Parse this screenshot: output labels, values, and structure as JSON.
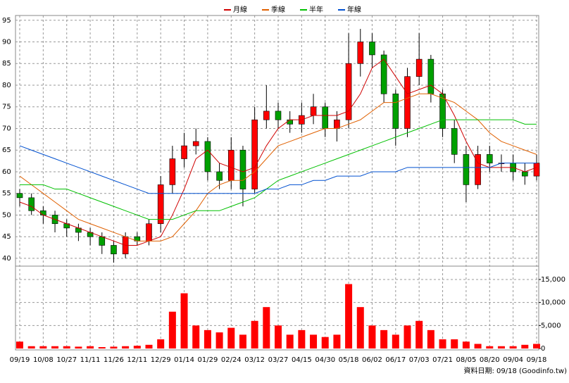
{
  "chart_data": {
    "type": "candlestick",
    "categories": [
      "09/19",
      null,
      "10/08",
      null,
      "10/27",
      null,
      "11/11",
      null,
      "11/26",
      null,
      "12/11",
      null,
      "12/29",
      null,
      "01/14",
      null,
      "01/29",
      null,
      "02/24",
      null,
      "03/12",
      null,
      "03/27",
      null,
      "04/15",
      null,
      "04/30",
      null,
      "05/18",
      null,
      "06/02",
      null,
      "06/17",
      null,
      "07/03",
      null,
      "07/21",
      null,
      "08/05",
      null,
      "08/20",
      null,
      "09/04",
      null,
      "09/18"
    ],
    "open": [
      55,
      54,
      51,
      50,
      48,
      47,
      46,
      45,
      43,
      41,
      45,
      44,
      48,
      57,
      63,
      66,
      67,
      60,
      58,
      65,
      56,
      72,
      74,
      72,
      71,
      73,
      75,
      70,
      72,
      85,
      90,
      87,
      78,
      70,
      82,
      86,
      78,
      70,
      64,
      57,
      64,
      62,
      62,
      60,
      59
    ],
    "high": [
      56,
      55,
      52,
      51,
      49,
      48,
      47,
      46,
      44,
      46,
      46,
      49,
      59,
      66,
      69,
      70,
      68,
      62,
      68,
      66,
      75,
      80,
      76,
      74,
      76,
      78,
      76,
      74,
      92,
      93,
      92,
      88,
      79,
      84,
      92,
      87,
      79,
      72,
      66,
      66,
      66,
      64,
      64,
      62,
      64
    ],
    "low": [
      52,
      50,
      48,
      46,
      45,
      44,
      43,
      41,
      39,
      40,
      43,
      43,
      46,
      55,
      61,
      64,
      58,
      56,
      56,
      52,
      55,
      70,
      70,
      69,
      69,
      71,
      68,
      67,
      70,
      82,
      84,
      76,
      66,
      68,
      80,
      76,
      68,
      62,
      53,
      56,
      60,
      60,
      58,
      57,
      58
    ],
    "close": [
      54,
      51,
      50,
      48,
      47,
      46,
      45,
      43,
      41,
      45,
      44,
      48,
      57,
      63,
      66,
      67,
      60,
      58,
      65,
      56,
      72,
      74,
      72,
      71,
      73,
      75,
      70,
      72,
      85,
      90,
      87,
      78,
      70,
      82,
      86,
      78,
      70,
      64,
      57,
      64,
      62,
      62,
      60,
      59,
      62
    ],
    "up_color": "#ff0000",
    "down_color": "#00a000",
    "series": [
      {
        "name": "月線",
        "color": "#d00000",
        "values": [
          53,
          52,
          50,
          49,
          48,
          47,
          46,
          45,
          44,
          43,
          43,
          44,
          45,
          50,
          56,
          63,
          65,
          62,
          61,
          60,
          61,
          66,
          70,
          72,
          72,
          73,
          73,
          73,
          74,
          78,
          84,
          86,
          82,
          78,
          79,
          80,
          78,
          73,
          67,
          62,
          61,
          61,
          61,
          60,
          61
        ]
      },
      {
        "name": "季線",
        "color": "#e06000",
        "values": [
          59,
          57,
          55,
          53,
          51,
          49,
          48,
          47,
          46,
          45,
          44,
          44,
          44,
          45,
          48,
          51,
          55,
          57,
          58,
          58,
          60,
          63,
          66,
          67,
          68,
          69,
          70,
          70,
          71,
          72,
          74,
          76,
          76,
          77,
          78,
          78,
          77,
          76,
          74,
          72,
          69,
          67,
          66,
          65,
          64
        ]
      },
      {
        "name": "半年",
        "color": "#00c000",
        "values": [
          57,
          57,
          57,
          56,
          56,
          55,
          54,
          53,
          52,
          51,
          50,
          49,
          49,
          49,
          50,
          51,
          51,
          51,
          52,
          53,
          54,
          56,
          58,
          59,
          60,
          61,
          62,
          63,
          64,
          65,
          66,
          67,
          68,
          69,
          70,
          71,
          72,
          72,
          72,
          72,
          72,
          72,
          72,
          71,
          71
        ]
      },
      {
        "name": "年線",
        "color": "#0050d0",
        "values": [
          66,
          65,
          64,
          63,
          62,
          61,
          60,
          59,
          58,
          57,
          56,
          55,
          55,
          55,
          55,
          55,
          55,
          55,
          55,
          55,
          55,
          56,
          56,
          57,
          57,
          58,
          58,
          59,
          59,
          59,
          60,
          60,
          60,
          61,
          61,
          61,
          61,
          61,
          61,
          61,
          61,
          62,
          62,
          62,
          62
        ]
      }
    ],
    "ylim": [
      38.2,
      96.1
    ],
    "yticks": [
      40,
      45,
      50,
      55,
      60,
      65,
      70,
      75,
      80,
      85,
      90,
      95
    ],
    "grid": true,
    "volume": {
      "color": "#ff0000",
      "values": [
        1500,
        500,
        500,
        500,
        500,
        400,
        500,
        300,
        400,
        500,
        600,
        800,
        2000,
        8000,
        12000,
        5000,
        4000,
        3500,
        4500,
        3000,
        6000,
        9000,
        5000,
        3000,
        4000,
        3000,
        2500,
        3000,
        14000,
        9000,
        5000,
        4000,
        3000,
        5000,
        6000,
        4000,
        2000,
        2000,
        1500,
        1000,
        500,
        500,
        500,
        800,
        1000
      ],
      "y2lim": [
        0,
        17900
      ],
      "y2ticks": [
        0,
        {
          "value": 5000,
          "label": "5,000"
        },
        {
          "value": 10000,
          "label": "10,000"
        },
        {
          "value": 15000,
          "label": "15,000"
        }
      ]
    },
    "footer": "資料日期: 09/18 (Goodinfo.tw)"
  }
}
